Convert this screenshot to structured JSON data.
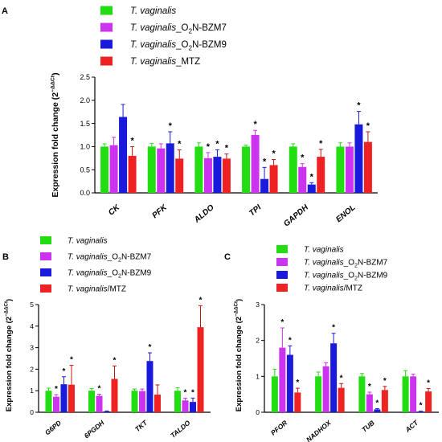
{
  "chart_data": [
    {
      "panel": "A",
      "type": "bar",
      "ylabel": "Expression fold change (2",
      "ylabel_sup": "−ΔΔCt",
      "ylabel_close": ")",
      "ylim": [
        0,
        2.5
      ],
      "yticks": [
        "0.0",
        "0.5",
        "1.0",
        "1.5",
        "2.0",
        "2.5"
      ],
      "categories": [
        "CK",
        "PFK",
        "ALDO",
        "TPI",
        "GAPDH",
        "ENOL"
      ],
      "series": [
        {
          "name": "T. vaginalis",
          "name_parts": [
            {
              "t": "T. vaginalis",
              "i": true
            }
          ],
          "color": "#22dd11",
          "values": [
            1.0,
            1.0,
            1.0,
            1.0,
            1.0,
            1.0
          ],
          "errors": [
            0.06,
            0.07,
            0.08,
            0.03,
            0.06,
            0.08
          ],
          "stars": [
            false,
            false,
            false,
            false,
            false,
            false
          ]
        },
        {
          "name": "T. vaginalis_O2N-BZM7",
          "name_parts": [
            {
              "t": "T. vaginalis",
              "i": true
            },
            {
              "t": "_O"
            },
            {
              "t": "2",
              "sub": true
            },
            {
              "t": "N-BZM7"
            }
          ],
          "color": "#cc33ee",
          "values": [
            1.03,
            0.96,
            0.75,
            1.25,
            0.56,
            1.0
          ],
          "errors": [
            0.17,
            0.1,
            0.12,
            0.1,
            0.07,
            0.08
          ],
          "stars": [
            false,
            false,
            true,
            true,
            true,
            false
          ]
        },
        {
          "name": "T. vaginalis_O2N-BZM9",
          "name_parts": [
            {
              "t": "T. vaginalis",
              "i": true
            },
            {
              "t": "_O"
            },
            {
              "t": "2",
              "sub": true
            },
            {
              "t": "N-BZM9"
            }
          ],
          "color": "#1a1adc",
          "values": [
            1.64,
            1.07,
            0.78,
            0.3,
            0.18,
            1.48
          ],
          "errors": [
            0.27,
            0.25,
            0.15,
            0.25,
            0.04,
            0.28
          ],
          "stars": [
            false,
            true,
            true,
            true,
            true,
            true
          ]
        },
        {
          "name": "T. vaginalis_MTZ",
          "name_parts": [
            {
              "t": "T. vaginalis",
              "i": true
            },
            {
              "t": "_MTZ"
            }
          ],
          "color": "#ee2222",
          "values": [
            0.8,
            0.74,
            0.74,
            0.6,
            0.78,
            1.1
          ],
          "errors": [
            0.2,
            0.19,
            0.1,
            0.12,
            0.16,
            0.22
          ],
          "stars": [
            true,
            true,
            true,
            true,
            true,
            true
          ]
        }
      ]
    },
    {
      "panel": "B",
      "type": "bar",
      "ylabel": "Expression fold change (2",
      "ylabel_sup": "−ΔΔCt",
      "ylabel_close": ")",
      "ylim": [
        0,
        5
      ],
      "yticks": [
        "0",
        "1",
        "2",
        "3",
        "4",
        "5"
      ],
      "categories": [
        "G6PD",
        "6PGDH",
        "TKT",
        "TALDO"
      ],
      "series": [
        {
          "name": "T. vaginalis",
          "name_parts": [
            {
              "t": "T. vaginalis",
              "i": true
            }
          ],
          "color": "#22dd11",
          "values": [
            1.0,
            1.0,
            1.0,
            1.0
          ],
          "errors": [
            0.12,
            0.1,
            0.08,
            0.14
          ],
          "stars": [
            false,
            false,
            false,
            false
          ]
        },
        {
          "name": "T. vaginalis_O2N-BZM7",
          "name_parts": [
            {
              "t": "T. vaginalis",
              "i": true
            },
            {
              "t": "_O"
            },
            {
              "t": "2",
              "sub": true
            },
            {
              "t": "N-BZM7"
            }
          ],
          "color": "#cc33ee",
          "values": [
            0.72,
            0.76,
            0.98,
            0.55
          ],
          "errors": [
            0.1,
            0.08,
            0.1,
            0.1
          ],
          "stars": [
            true,
            true,
            false,
            true
          ]
        },
        {
          "name": "T. vaginalis_O2N-BZM9",
          "name_parts": [
            {
              "t": "T. vaginalis",
              "i": true
            },
            {
              "t": "_O"
            },
            {
              "t": "2",
              "sub": true
            },
            {
              "t": "N-BZM9"
            }
          ],
          "color": "#1a1adc",
          "values": [
            1.3,
            0.04,
            2.38,
            0.48
          ],
          "errors": [
            0.35,
            0.02,
            0.38,
            0.18
          ],
          "stars": [
            true,
            false,
            true,
            true
          ]
        },
        {
          "name": "T. vaginalis/MTZ",
          "name_parts": [
            {
              "t": "T. vaginalis",
              "i": true
            },
            {
              "t": "/MTZ"
            }
          ],
          "color": "#ee2222",
          "values": [
            1.28,
            1.55,
            0.82,
            3.95
          ],
          "errors": [
            0.9,
            0.6,
            0.45,
            1.0
          ],
          "stars": [
            true,
            true,
            false,
            true
          ]
        }
      ]
    },
    {
      "panel": "C",
      "type": "bar",
      "ylabel": "Expression fold change (2",
      "ylabel_sup": "−ΔΔCt",
      "ylabel_close": ")",
      "ylim": [
        0,
        3
      ],
      "yticks": [
        "0",
        "1",
        "2",
        "3"
      ],
      "categories": [
        "PFOR",
        "NADHOX",
        "TUB",
        "ACT"
      ],
      "series": [
        {
          "name": "T. vaginalis",
          "name_parts": [
            {
              "t": "T. vaginalis",
              "i": true
            }
          ],
          "color": "#22dd11",
          "values": [
            1.0,
            1.0,
            1.0,
            1.0
          ],
          "errors": [
            0.2,
            0.12,
            0.08,
            0.16
          ],
          "stars": [
            false,
            false,
            false,
            false
          ]
        },
        {
          "name": "T. vaginalis_O2N-BZM7",
          "name_parts": [
            {
              "t": "T. vaginalis",
              "i": true
            },
            {
              "t": "_O"
            },
            {
              "t": "2",
              "sub": true
            },
            {
              "t": "N-BZM7"
            }
          ],
          "color": "#cc33ee",
          "values": [
            1.8,
            1.28,
            0.5,
            1.0
          ],
          "errors": [
            0.55,
            0.1,
            0.06,
            0.06
          ],
          "stars": [
            true,
            false,
            true,
            false
          ]
        },
        {
          "name": "T. vaginalis_O2N-BZM9",
          "name_parts": [
            {
              "t": "T. vaginalis",
              "i": true
            },
            {
              "t": "_O"
            },
            {
              "t": "2",
              "sub": true
            },
            {
              "t": "N-BZM9"
            }
          ],
          "color": "#1a1adc",
          "values": [
            1.6,
            1.92,
            0.08,
            0.02
          ],
          "errors": [
            0.25,
            0.28,
            0.02,
            0.01
          ],
          "stars": [
            true,
            true,
            true,
            true
          ]
        },
        {
          "name": "T. vaginalis/MTZ",
          "name_parts": [
            {
              "t": "T. vaginalis",
              "i": true
            },
            {
              "t": "/MTZ"
            }
          ],
          "color": "#ee2222",
          "values": [
            0.55,
            0.68,
            0.62,
            0.58
          ],
          "errors": [
            0.12,
            0.12,
            0.1,
            0.08
          ],
          "stars": [
            true,
            true,
            true,
            true
          ]
        }
      ]
    }
  ]
}
